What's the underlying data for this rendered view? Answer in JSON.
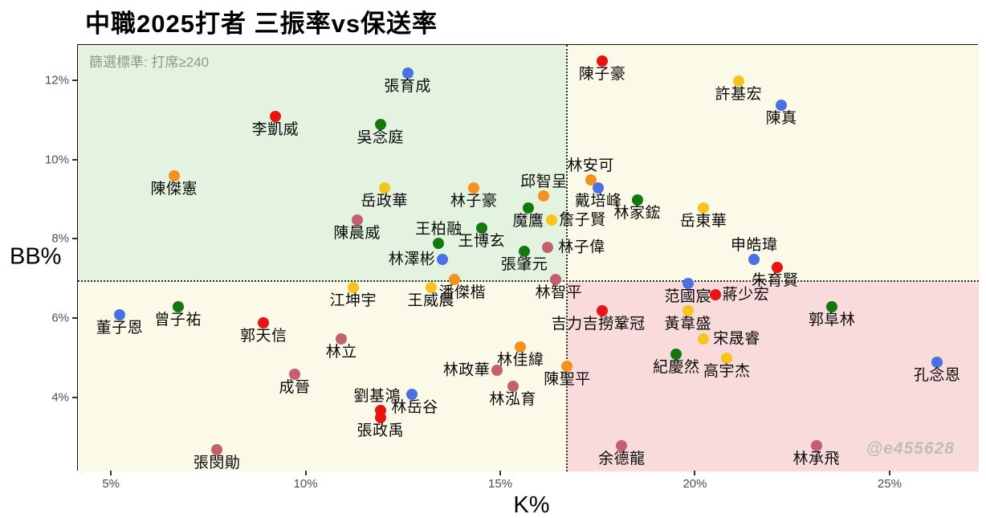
{
  "title": "中職2025打者 三振率vs保送率",
  "subtitle": "篩選標準: 打席≥240",
  "watermark": "@e455628",
  "axes": {
    "x_title": "K%",
    "y_title": "BB%"
  },
  "colors": {
    "red": "#ea1212",
    "orange": "#f5911e",
    "yellow": "#f6c51d",
    "green": "#11790f",
    "blue": "#4a70e2",
    "rose": "#c4606c",
    "quad_top_left": "#e3f3e0",
    "quad_ivory": "#fbfae9",
    "quad_bottom_right": "#fadbdb",
    "dot_stroke": "none"
  },
  "chart_data": {
    "type": "scatter",
    "title": "中職2025打者 三振率vs保送率",
    "subtitle": "篩選標準: 打席≥240",
    "xlabel": "K%",
    "ylabel": "BB%",
    "x_range": [
      4.13,
      27.27
    ],
    "y_range": [
      2.15,
      12.91
    ],
    "x_ticks": [
      5,
      10,
      15,
      20,
      25
    ],
    "y_ticks": [
      12,
      10,
      8,
      6,
      4
    ],
    "tick_suffix": "%",
    "grid": false,
    "reference_lines": {
      "x": 16.7,
      "y": 6.96
    },
    "points": [
      {
        "name": "張育成",
        "k": 12.6,
        "bb": 12.2,
        "color": "blue",
        "anchor": "below"
      },
      {
        "name": "陳子豪",
        "k": 17.6,
        "bb": 12.5,
        "color": "red",
        "anchor": "below"
      },
      {
        "name": "許基宏",
        "k": 21.1,
        "bb": 12.0,
        "color": "yellow",
        "anchor": "below"
      },
      {
        "name": "陳真",
        "k": 22.2,
        "bb": 11.4,
        "color": "blue",
        "anchor": "below"
      },
      {
        "name": "李凱威",
        "k": 9.2,
        "bb": 11.1,
        "color": "red",
        "anchor": "below"
      },
      {
        "name": "吳念庭",
        "k": 11.9,
        "bb": 10.9,
        "color": "green",
        "anchor": "below"
      },
      {
        "name": "陳傑憲",
        "k": 6.6,
        "bb": 9.6,
        "color": "orange",
        "anchor": "below"
      },
      {
        "name": "林安可",
        "k": 17.3,
        "bb": 9.5,
        "color": "orange",
        "anchor": "above"
      },
      {
        "name": "戴培峰",
        "k": 17.5,
        "bb": 9.3,
        "color": "blue",
        "anchor": "below"
      },
      {
        "name": "邱智呈",
        "k": 16.1,
        "bb": 9.1,
        "color": "orange",
        "anchor": "above"
      },
      {
        "name": "林家鋐",
        "k": 18.5,
        "bb": 9.0,
        "color": "green",
        "anchor": "below"
      },
      {
        "name": "岳政華",
        "k": 12.0,
        "bb": 9.3,
        "color": "yellow",
        "anchor": "below"
      },
      {
        "name": "林子豪",
        "k": 14.3,
        "bb": 9.3,
        "color": "orange",
        "anchor": "below"
      },
      {
        "name": "魔鷹",
        "k": 15.7,
        "bb": 8.8,
        "color": "green",
        "anchor": "below"
      },
      {
        "name": "詹子賢",
        "k": 16.3,
        "bb": 8.5,
        "color": "yellow",
        "anchor": "right"
      },
      {
        "name": "岳東華",
        "k": 20.2,
        "bb": 8.8,
        "color": "yellow",
        "anchor": "below"
      },
      {
        "name": "陳晨威",
        "k": 11.3,
        "bb": 8.5,
        "color": "rose",
        "anchor": "below"
      },
      {
        "name": "王柏融",
        "k": 13.4,
        "bb": 7.9,
        "color": "green",
        "anchor": "above"
      },
      {
        "name": "王博玄",
        "k": 14.5,
        "bb": 8.3,
        "color": "green",
        "anchor": "below"
      },
      {
        "name": "林子偉",
        "k": 16.2,
        "bb": 7.8,
        "color": "rose",
        "anchor": "right",
        "dx": 4
      },
      {
        "name": "張肇元",
        "k": 15.6,
        "bb": 7.7,
        "color": "green",
        "anchor": "below"
      },
      {
        "name": "林澤彬",
        "k": 13.5,
        "bb": 7.5,
        "color": "blue",
        "anchor": "left"
      },
      {
        "name": "申皓瑋",
        "k": 21.5,
        "bb": 7.5,
        "color": "blue",
        "anchor": "above"
      },
      {
        "name": "朱育賢",
        "k": 22.1,
        "bb": 7.3,
        "color": "red",
        "anchor": "below",
        "dx": -3
      },
      {
        "name": "林智平",
        "k": 16.4,
        "bb": 7.0,
        "color": "rose",
        "anchor": "below",
        "dx": 4
      },
      {
        "name": "潘傑楷",
        "k": 13.8,
        "bb": 7.0,
        "color": "orange",
        "anchor": "below",
        "dx": 10
      },
      {
        "name": "王威晨",
        "k": 13.2,
        "bb": 6.8,
        "color": "yellow",
        "anchor": "below"
      },
      {
        "name": "江坤宇",
        "k": 11.2,
        "bb": 6.8,
        "color": "yellow",
        "anchor": "below"
      },
      {
        "name": "范國宸",
        "k": 19.8,
        "bb": 6.9,
        "color": "blue",
        "anchor": "below"
      },
      {
        "name": "蔣少宏",
        "k": 20.5,
        "bb": 6.6,
        "color": "red",
        "anchor": "right"
      },
      {
        "name": "吉力吉撈鞏冠",
        "k": 17.6,
        "bb": 6.2,
        "color": "red",
        "anchor": "below",
        "dx": -5
      },
      {
        "name": "黃韋盛",
        "k": 19.8,
        "bb": 6.2,
        "color": "yellow",
        "anchor": "below"
      },
      {
        "name": "郭阜林",
        "k": 23.5,
        "bb": 6.3,
        "color": "green",
        "anchor": "below"
      },
      {
        "name": "宋晟睿",
        "k": 20.2,
        "bb": 5.5,
        "color": "yellow",
        "anchor": "right",
        "dx": 3
      },
      {
        "name": "紀慶然",
        "k": 19.5,
        "bb": 5.1,
        "color": "green",
        "anchor": "below"
      },
      {
        "name": "高宇杰",
        "k": 20.8,
        "bb": 5.0,
        "color": "yellow",
        "anchor": "below"
      },
      {
        "name": "孔念恩",
        "k": 26.2,
        "bb": 4.9,
        "color": "blue",
        "anchor": "below"
      },
      {
        "name": "董子恩",
        "k": 5.2,
        "bb": 6.1,
        "color": "blue",
        "anchor": "below"
      },
      {
        "name": "曾子祐",
        "k": 6.7,
        "bb": 6.3,
        "color": "green",
        "anchor": "below"
      },
      {
        "name": "郭天信",
        "k": 8.9,
        "bb": 5.9,
        "color": "red",
        "anchor": "below"
      },
      {
        "name": "林立",
        "k": 10.9,
        "bb": 5.5,
        "color": "rose",
        "anchor": "below"
      },
      {
        "name": "成晉",
        "k": 9.7,
        "bb": 4.6,
        "color": "rose",
        "anchor": "below"
      },
      {
        "name": "劉基鴻",
        "k": 11.9,
        "bb": 3.7,
        "color": "red",
        "anchor": "above",
        "dx": -4
      },
      {
        "name": "林岳谷",
        "k": 12.7,
        "bb": 4.1,
        "color": "blue",
        "anchor": "below",
        "dx": 4
      },
      {
        "name": "張政禹",
        "k": 11.9,
        "bb": 3.5,
        "color": "red",
        "anchor": "below"
      },
      {
        "name": "林政華",
        "k": 14.9,
        "bb": 4.7,
        "color": "rose",
        "anchor": "left"
      },
      {
        "name": "林佳緯",
        "k": 15.5,
        "bb": 5.3,
        "color": "orange",
        "anchor": "below"
      },
      {
        "name": "林泓育",
        "k": 15.3,
        "bb": 4.3,
        "color": "rose",
        "anchor": "below"
      },
      {
        "name": "陳聖平",
        "k": 16.7,
        "bb": 4.8,
        "color": "orange",
        "anchor": "below"
      },
      {
        "name": "余德龍",
        "k": 18.1,
        "bb": 2.8,
        "color": "rose",
        "anchor": "below"
      },
      {
        "name": "林承飛",
        "k": 23.1,
        "bb": 2.8,
        "color": "rose",
        "anchor": "below"
      },
      {
        "name": "張閔勛",
        "k": 7.7,
        "bb": 2.7,
        "color": "rose",
        "anchor": "below"
      }
    ]
  }
}
